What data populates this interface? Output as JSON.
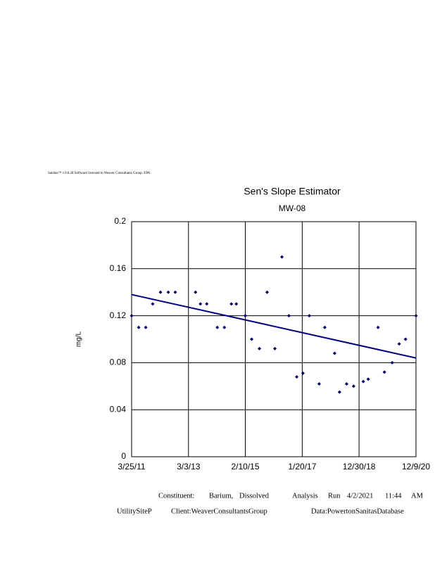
{
  "header": "Sanitas™ v.9.6.28 Software licensed to Weaver Consultants Group. EPA",
  "chart_data": {
    "type": "scatter",
    "title": "Sen's Slope Estimator",
    "subtitle": "MW-08",
    "y_label": "mg/L",
    "xlim": [
      "2011-03-25",
      "2020-12-09"
    ],
    "xticks": [
      {
        "value": "2011-03-25",
        "label": "3/25/11"
      },
      {
        "value": "2013-03-03",
        "label": "3/3/13"
      },
      {
        "value": "2015-02-10",
        "label": "2/10/15"
      },
      {
        "value": "2017-01-20",
        "label": "1/20/17"
      },
      {
        "value": "2018-12-30",
        "label": "12/30/18"
      },
      {
        "value": "2020-12-09",
        "label": "12/9/20"
      }
    ],
    "ylim": [
      0,
      0.2
    ],
    "yticks": [
      0,
      0.04,
      0.08,
      0.12,
      0.16,
      0.2
    ],
    "grid": true,
    "series": [
      {
        "type": "scatter",
        "color": "#000066",
        "x": [
          "2011-03-25",
          "2011-06-21",
          "2011-09-17",
          "2011-12-13",
          "2012-03-19",
          "2012-06-24",
          "2012-09-19",
          "2013-05-30",
          "2013-07-30",
          "2013-10-17",
          "2014-02-26",
          "2014-05-25",
          "2014-08-21",
          "2014-10-21",
          "2015-02-10",
          "2015-04-30",
          "2015-08-05",
          "2015-11-09",
          "2016-02-14",
          "2016-05-12",
          "2016-08-07",
          "2016-11-12",
          "2017-01-29",
          "2017-04-18",
          "2017-08-19",
          "2017-10-28",
          "2018-02-28",
          "2018-04-30",
          "2018-07-27",
          "2018-10-23",
          "2019-02-21",
          "2019-04-23",
          "2019-08-24",
          "2019-11-11",
          "2020-02-16",
          "2020-05-13",
          "2020-08-01",
          "2020-12-09"
        ],
        "values": [
          0.12,
          0.11,
          0.11,
          0.13,
          0.14,
          0.14,
          0.14,
          0.14,
          0.13,
          0.13,
          0.11,
          0.11,
          0.13,
          0.13,
          0.12,
          0.1,
          0.092,
          0.14,
          0.092,
          0.17,
          0.12,
          0.068,
          0.071,
          0.12,
          0.062,
          0.11,
          0.088,
          0.055,
          0.062,
          0.06,
          0.064,
          0.066,
          0.11,
          0.072,
          0.08,
          0.096,
          0.1,
          0.12
        ]
      },
      {
        "type": "line",
        "color": "#000080",
        "x": [
          "2011-03-25",
          "2020-12-09"
        ],
        "values": [
          0.138,
          0.084
        ]
      }
    ]
  },
  "footer": {
    "constituent": [
      "Constituent:",
      "Barium,",
      "Dissolved",
      "Analysis",
      "Run",
      "4/2/2021",
      "11:44",
      "AM"
    ],
    "info": [
      "UtilitySiteP",
      "Client:WeaverConsultantsGroup",
      "Data:PowertonSanitasDatabase"
    ]
  }
}
